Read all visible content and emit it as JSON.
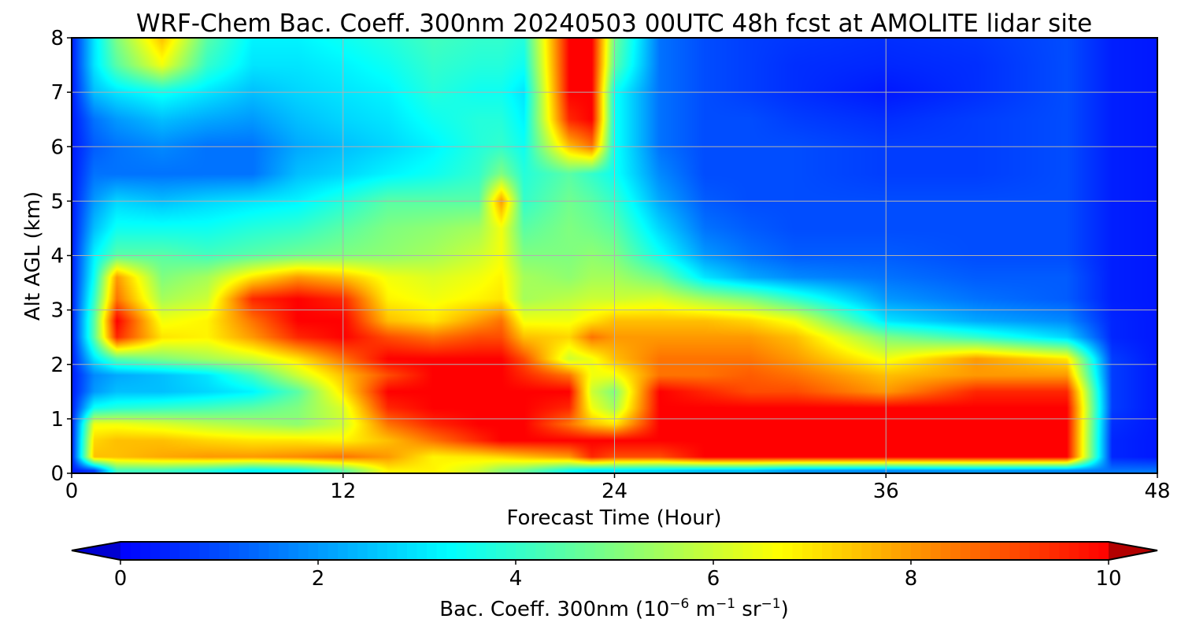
{
  "chart_data": {
    "type": "heatmap",
    "title": "WRF-Chem Bac. Coeff. 300nm  20240503 00UTC 48h fcst at AMOLITE lidar site",
    "xlabel": "Forecast Time (Hour)",
    "ylabel": "Alt AGL (km)",
    "xlim": [
      0,
      48
    ],
    "ylim": [
      0,
      8
    ],
    "xticks": [
      0,
      12,
      24,
      36,
      48
    ],
    "yticks": [
      0,
      1,
      2,
      3,
      4,
      5,
      6,
      7,
      8
    ],
    "grid": true,
    "colorbar": {
      "label_main": "Bac. Coeff. 300nm  (10",
      "label_exp1": "−6",
      "label_mid": " m",
      "label_exp2": "−1",
      "label_mid2": " sr",
      "label_exp3": "−1",
      "label_end": ")",
      "range": [
        0,
        10
      ],
      "ticks": [
        0,
        2,
        4,
        6,
        8,
        10
      ],
      "extend": "both",
      "colormap": "jet"
    },
    "times": [
      0,
      1,
      2,
      4,
      6,
      8,
      10,
      12,
      14,
      16,
      18,
      19,
      20,
      22,
      23,
      24,
      26,
      28,
      30,
      32,
      36,
      40,
      44,
      46,
      48
    ],
    "altitudes_km": [
      0.05,
      0.3,
      0.6,
      0.9,
      1.2,
      1.5,
      1.8,
      2.1,
      2.5,
      2.8,
      3.2,
      3.6,
      4.0,
      4.5,
      5.0,
      5.5,
      6.0,
      6.5,
      7.0,
      7.5,
      8.0
    ],
    "values": [
      [
        0.3,
        0.8,
        4.2,
        4.2,
        3.8,
        3.2,
        3.5,
        4.5,
        6.8,
        6.8,
        6.0,
        5.2,
        4.8,
        3.5,
        3.0,
        3.0,
        2.8,
        2.5,
        2.5,
        2.0,
        1.8,
        2.0,
        1.8,
        1.5,
        1.5
      ],
      [
        0.3,
        7.5,
        7.5,
        7.8,
        8.0,
        8.0,
        8.2,
        8.5,
        8.0,
        6.8,
        7.0,
        7.2,
        7.5,
        8.0,
        9.5,
        9.0,
        9.0,
        10.0,
        10.0,
        10.0,
        10.0,
        10.0,
        10.0,
        0.5,
        0.3
      ],
      [
        0.3,
        7.2,
        7.5,
        7.5,
        7.2,
        7.0,
        7.0,
        6.8,
        7.5,
        8.5,
        9.5,
        10.0,
        10.0,
        10.0,
        10.0,
        10.0,
        10.0,
        10.0,
        10.0,
        10.0,
        10.0,
        10.0,
        10.0,
        0.5,
        0.3
      ],
      [
        0.3,
        6.5,
        6.5,
        6.2,
        5.8,
        5.5,
        5.2,
        6.0,
        8.5,
        9.5,
        10.0,
        10.0,
        10.0,
        8.5,
        7.5,
        7.0,
        10.0,
        10.0,
        10.0,
        10.0,
        10.0,
        10.0,
        10.0,
        0.6,
        0.3
      ],
      [
        0.3,
        3.5,
        3.8,
        4.0,
        4.2,
        4.5,
        5.0,
        6.2,
        9.5,
        10.0,
        10.0,
        10.0,
        10.0,
        9.5,
        6.5,
        5.5,
        10.0,
        10.0,
        10.0,
        10.0,
        10.0,
        10.0,
        10.0,
        0.8,
        0.3
      ],
      [
        0.3,
        2.0,
        2.5,
        2.5,
        2.8,
        3.2,
        4.5,
        7.0,
        10.0,
        10.0,
        10.0,
        10.0,
        10.0,
        10.0,
        6.0,
        5.0,
        10.0,
        9.5,
        9.0,
        9.0,
        8.0,
        9.5,
        9.5,
        0.8,
        0.3
      ],
      [
        0.3,
        1.8,
        2.2,
        2.5,
        3.0,
        4.2,
        6.0,
        7.5,
        9.0,
        10.0,
        10.0,
        10.0,
        9.5,
        8.5,
        6.5,
        6.5,
        8.5,
        8.5,
        8.8,
        8.5,
        7.5,
        8.0,
        8.0,
        0.8,
        0.3
      ],
      [
        0.3,
        3.0,
        4.5,
        5.0,
        5.5,
        6.0,
        7.0,
        8.5,
        10.0,
        10.0,
        10.0,
        10.0,
        9.0,
        6.0,
        6.5,
        7.5,
        8.5,
        8.5,
        8.5,
        8.0,
        6.5,
        8.0,
        7.0,
        0.8,
        0.3
      ],
      [
        0.3,
        4.5,
        9.5,
        7.0,
        6.8,
        8.0,
        9.5,
        10.0,
        9.0,
        8.5,
        9.0,
        9.0,
        7.5,
        7.2,
        8.5,
        8.0,
        8.0,
        8.0,
        8.0,
        7.5,
        5.0,
        4.0,
        2.8,
        0.5,
        0.3
      ],
      [
        0.3,
        4.5,
        10.0,
        6.5,
        6.8,
        8.5,
        10.0,
        10.0,
        7.5,
        7.0,
        8.0,
        8.5,
        6.5,
        6.5,
        7.0,
        7.5,
        7.5,
        7.5,
        7.2,
        6.5,
        3.0,
        2.2,
        1.8,
        0.5,
        0.3
      ],
      [
        0.3,
        4.0,
        8.5,
        5.5,
        6.0,
        9.5,
        10.0,
        9.5,
        6.8,
        6.5,
        6.8,
        7.0,
        5.5,
        5.8,
        6.0,
        6.0,
        6.2,
        5.5,
        5.0,
        4.0,
        2.0,
        1.5,
        1.2,
        0.4,
        0.3
      ],
      [
        0.3,
        3.5,
        8.0,
        5.0,
        5.5,
        7.0,
        8.0,
        7.5,
        6.5,
        6.2,
        6.5,
        6.8,
        5.5,
        5.2,
        5.5,
        5.5,
        4.8,
        3.0,
        2.2,
        1.8,
        1.5,
        1.2,
        1.2,
        0.4,
        0.3
      ],
      [
        0.3,
        3.2,
        4.5,
        4.5,
        4.2,
        4.5,
        4.8,
        5.0,
        5.2,
        5.5,
        6.0,
        6.5,
        5.0,
        5.0,
        5.2,
        5.0,
        3.5,
        2.0,
        1.5,
        1.2,
        1.2,
        1.0,
        1.0,
        0.4,
        0.3
      ],
      [
        0.3,
        2.5,
        3.5,
        3.5,
        3.5,
        3.8,
        4.0,
        4.5,
        5.0,
        5.2,
        5.5,
        6.5,
        4.5,
        5.0,
        4.8,
        4.5,
        2.8,
        1.5,
        1.2,
        1.0,
        1.0,
        1.0,
        1.0,
        0.4,
        0.3
      ],
      [
        0.3,
        2.0,
        2.8,
        2.5,
        2.8,
        3.0,
        3.2,
        3.8,
        4.5,
        4.5,
        4.5,
        8.0,
        4.0,
        4.8,
        4.5,
        4.0,
        2.2,
        1.2,
        1.0,
        1.0,
        1.0,
        1.0,
        1.0,
        0.4,
        0.3
      ],
      [
        0.3,
        1.5,
        1.5,
        1.5,
        1.5,
        1.5,
        2.5,
        2.8,
        3.2,
        3.5,
        4.0,
        5.0,
        3.8,
        4.5,
        4.0,
        3.5,
        1.8,
        1.0,
        1.0,
        1.0,
        0.8,
        0.8,
        1.0,
        0.4,
        0.3
      ],
      [
        0.3,
        1.2,
        1.5,
        1.8,
        1.5,
        1.5,
        2.2,
        2.5,
        2.8,
        3.2,
        3.8,
        4.0,
        3.5,
        7.5,
        8.5,
        3.5,
        1.5,
        1.0,
        1.0,
        1.0,
        0.8,
        0.8,
        1.0,
        0.4,
        0.3
      ],
      [
        0.3,
        1.5,
        2.0,
        2.5,
        2.2,
        2.0,
        2.5,
        2.8,
        3.0,
        3.5,
        3.8,
        3.8,
        3.2,
        9.5,
        10.0,
        3.5,
        1.5,
        1.0,
        1.0,
        0.8,
        0.6,
        0.8,
        1.0,
        0.4,
        0.3
      ],
      [
        0.3,
        2.5,
        3.0,
        3.5,
        3.0,
        2.5,
        2.8,
        3.0,
        3.2,
        3.8,
        3.5,
        3.5,
        3.0,
        10.0,
        10.0,
        3.5,
        1.5,
        1.0,
        0.8,
        0.6,
        0.3,
        0.6,
        1.0,
        0.4,
        0.3
      ],
      [
        0.3,
        3.0,
        4.5,
        6.5,
        4.0,
        3.0,
        3.0,
        3.2,
        3.5,
        4.0,
        3.8,
        3.8,
        3.5,
        10.0,
        10.0,
        4.5,
        1.5,
        1.0,
        0.8,
        0.6,
        0.5,
        0.6,
        1.0,
        0.4,
        0.3
      ],
      [
        0.3,
        3.0,
        5.0,
        7.5,
        4.5,
        3.2,
        3.2,
        3.5,
        3.8,
        4.2,
        4.0,
        4.0,
        3.8,
        10.0,
        10.0,
        4.8,
        1.5,
        1.0,
        0.8,
        0.7,
        0.6,
        0.7,
        1.0,
        0.4,
        0.3
      ]
    ]
  }
}
